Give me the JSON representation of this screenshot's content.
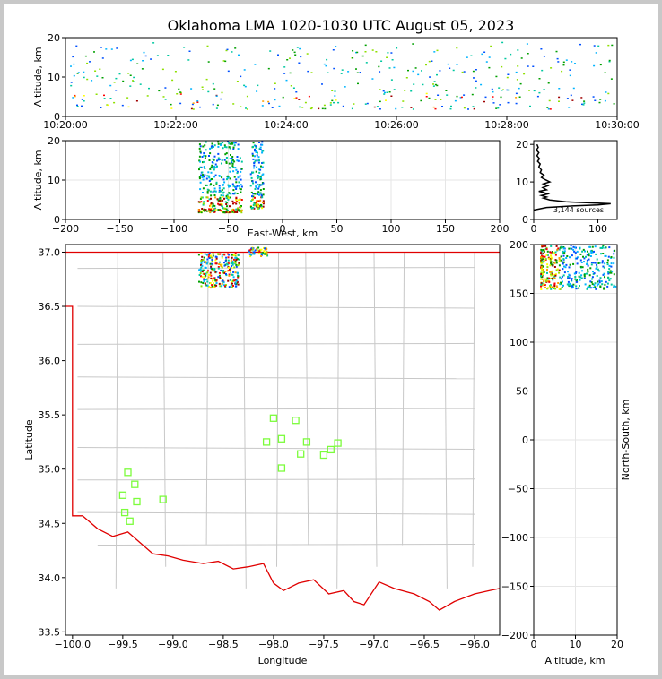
{
  "title": "Oklahoma LMA 1020-1030 UTC August 05, 2023",
  "source_count_label": "3,144 sources",
  "chart_data": [
    {
      "panel": "time-height",
      "type": "scatter",
      "ylabel": "Altitude, km",
      "xlabel": "",
      "x_ticks": [
        "10:20:00",
        "10:22:00",
        "10:24:00",
        "10:26:00",
        "10:28:00",
        "10:30:00"
      ],
      "xlim": [
        "10:20:00",
        "10:30:00"
      ],
      "ylim": [
        0,
        20
      ],
      "y_ticks": [
        0,
        10,
        20
      ]
    },
    {
      "panel": "east-west-altitude",
      "type": "scatter",
      "xlabel": "East-West, km",
      "ylabel": "Altitude, km",
      "xlim": [
        -200,
        200
      ],
      "ylim": [
        0,
        20
      ],
      "x_ticks": [
        -200,
        -150,
        -100,
        -50,
        0,
        50,
        100,
        150,
        200
      ],
      "y_ticks": [
        0,
        10,
        20
      ],
      "grid": true,
      "clusters": [
        {
          "x_range": [
            -78,
            -38
          ],
          "y_range": [
            2,
            20
          ]
        },
        {
          "x_range": [
            -30,
            -18
          ],
          "y_range": [
            3,
            20
          ]
        }
      ]
    },
    {
      "panel": "altitude-histogram",
      "type": "line",
      "xlim": [
        0,
        130
      ],
      "ylim": [
        0,
        21
      ],
      "x_ticks": [
        0,
        100
      ],
      "y_ticks": [
        0,
        10,
        20
      ],
      "points": [
        [
          0,
          2.5
        ],
        [
          20,
          3.2
        ],
        [
          60,
          3.6
        ],
        [
          100,
          3.9
        ],
        [
          120,
          4.2
        ],
        [
          95,
          4.4
        ],
        [
          50,
          4.7
        ],
        [
          25,
          5.2
        ],
        [
          15,
          5.7
        ],
        [
          20,
          6
        ],
        [
          12,
          6.4
        ],
        [
          22,
          6.8
        ],
        [
          15,
          7.2
        ],
        [
          8,
          7.5
        ],
        [
          20,
          7.9
        ],
        [
          14,
          8.5
        ],
        [
          22,
          9
        ],
        [
          15,
          9.5
        ],
        [
          25,
          10
        ],
        [
          18,
          10.6
        ],
        [
          12,
          11.2
        ],
        [
          16,
          11.8
        ],
        [
          10,
          12.5
        ],
        [
          12,
          13.2
        ],
        [
          8,
          14
        ],
        [
          10,
          14.8
        ],
        [
          6,
          15.5
        ],
        [
          9,
          16.2
        ],
        [
          5,
          17
        ],
        [
          8,
          17.8
        ],
        [
          4,
          18.5
        ],
        [
          7,
          19.2
        ],
        [
          5,
          20
        ]
      ]
    },
    {
      "panel": "plan-view-map",
      "type": "scatter",
      "xlabel": "Longitude",
      "ylabel": "Latitude",
      "xlim": [
        -100.07,
        -95.75
      ],
      "ylim": [
        33.47,
        37.07
      ],
      "x_ticks": [
        -100.0,
        -99.5,
        -99.0,
        -98.5,
        -98.0,
        -97.5,
        -97.0,
        -96.5,
        -96.0
      ],
      "y_ticks": [
        33.5,
        34.0,
        34.5,
        35.0,
        35.5,
        36.0,
        36.5,
        37.0
      ],
      "stations": [
        [
          -99.5,
          34.76
        ],
        [
          -99.45,
          34.97
        ],
        [
          -99.38,
          34.86
        ],
        [
          -99.36,
          34.7
        ],
        [
          -99.48,
          34.6
        ],
        [
          -99.43,
          34.52
        ],
        [
          -99.1,
          34.72
        ],
        [
          -98.0,
          35.47
        ],
        [
          -97.78,
          35.45
        ],
        [
          -98.07,
          35.25
        ],
        [
          -97.92,
          35.28
        ],
        [
          -97.67,
          35.25
        ],
        [
          -97.73,
          35.14
        ],
        [
          -97.92,
          35.01
        ],
        [
          -97.5,
          35.13
        ],
        [
          -97.43,
          35.18
        ],
        [
          -97.36,
          35.24
        ]
      ],
      "clusters": [
        {
          "lon_range": [
            -98.75,
            -98.35
          ],
          "lat_range": [
            36.68,
            37.0
          ]
        },
        {
          "lon_range": [
            -98.25,
            -98.07
          ],
          "lat_range": [
            36.97,
            37.05
          ]
        }
      ]
    },
    {
      "panel": "north-south-altitude",
      "type": "scatter",
      "xlabel": "Altitude, km",
      "ylabel": "North-South, km",
      "xlim": [
        0,
        20
      ],
      "ylim": [
        -200,
        200
      ],
      "x_ticks": [
        0,
        10,
        20
      ],
      "y_ticks": [
        -200,
        -150,
        -100,
        -50,
        0,
        50,
        100,
        150,
        200
      ],
      "grid": true
    }
  ]
}
